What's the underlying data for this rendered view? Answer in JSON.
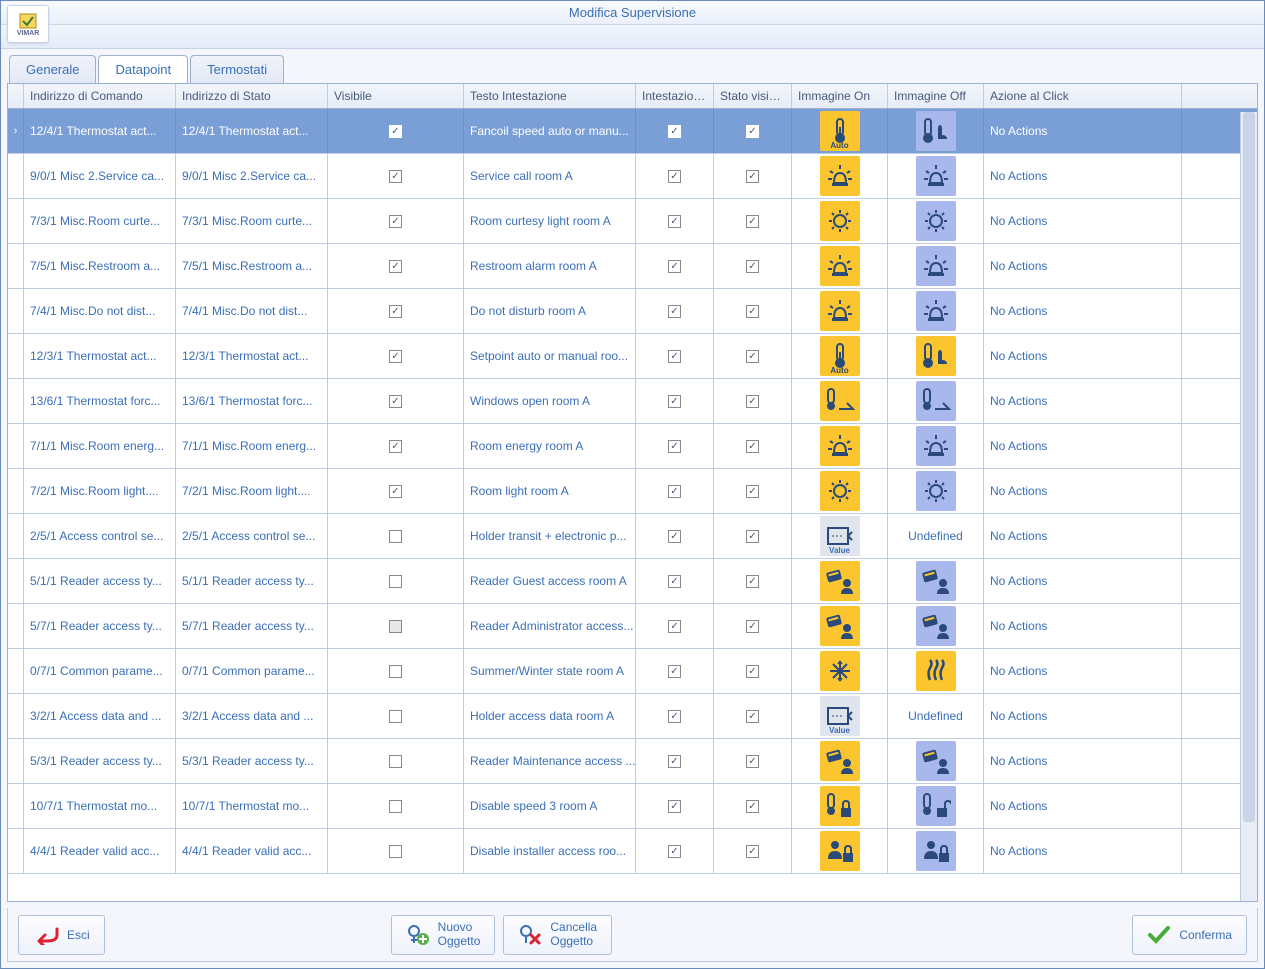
{
  "window": {
    "title": "Modifica Supervisione"
  },
  "logo": {
    "text": "VIMAR"
  },
  "tabs": [
    {
      "id": "generale",
      "label": "Generale",
      "active": false
    },
    {
      "id": "datapoint",
      "label": "Datapoint",
      "active": true
    },
    {
      "id": "termostati",
      "label": "Termostati",
      "active": false
    }
  ],
  "columns": [
    {
      "key": "cmd",
      "label": "Indirizzo di Comando",
      "widthClass": "col0"
    },
    {
      "key": "stato",
      "label": "Indirizzo di Stato",
      "widthClass": "col1"
    },
    {
      "key": "vis",
      "label": "Visibile",
      "widthClass": "col2"
    },
    {
      "key": "testo",
      "label": "Testo Intestazione",
      "widthClass": "col3"
    },
    {
      "key": "ivis",
      "label": "Intestazione Vi...",
      "widthClass": "col4"
    },
    {
      "key": "svis",
      "label": "Stato visibile",
      "widthClass": "col5"
    },
    {
      "key": "imOn",
      "label": "Immagine On",
      "widthClass": "col6"
    },
    {
      "key": "imOff",
      "label": "Immagine Off",
      "widthClass": "col7"
    },
    {
      "key": "act",
      "label": "Azione al Click",
      "widthClass": "col8"
    }
  ],
  "colors": {
    "iconOnBg": "#fbc52f",
    "iconOffBg": "#a8b8ec",
    "iconStroke": "#2a4a7a",
    "selectedRow": "#7a9ed6"
  },
  "rows": [
    {
      "selected": true,
      "cmd": "12/4/1 Thermostat act...",
      "stato": "12/4/1 Thermostat act...",
      "vis": true,
      "testo": "Fancoil speed auto or manu...",
      "ivis": true,
      "svis": true,
      "imOn": {
        "type": "thermo",
        "sub": "Auto"
      },
      "imOff": {
        "type": "thermo-hand",
        "bg": "off"
      },
      "act": "No Actions"
    },
    {
      "selected": false,
      "cmd": "9/0/1 Misc 2.Service ca...",
      "stato": "9/0/1 Misc 2.Service ca...",
      "vis": true,
      "testo": "Service call room A",
      "ivis": true,
      "svis": true,
      "imOn": {
        "type": "alarm"
      },
      "imOff": {
        "type": "alarm",
        "bg": "off"
      },
      "act": "No Actions"
    },
    {
      "selected": false,
      "cmd": "7/3/1 Misc.Room curte...",
      "stato": "7/3/1 Misc.Room curte...",
      "vis": true,
      "testo": "Room curtesy light room A",
      "ivis": true,
      "svis": true,
      "imOn": {
        "type": "bulb"
      },
      "imOff": {
        "type": "bulb",
        "bg": "off"
      },
      "act": "No Actions"
    },
    {
      "selected": false,
      "cmd": "7/5/1 Misc.Restroom a...",
      "stato": "7/5/1 Misc.Restroom a...",
      "vis": true,
      "testo": "Restroom alarm room A",
      "ivis": true,
      "svis": true,
      "imOn": {
        "type": "alarm"
      },
      "imOff": {
        "type": "alarm",
        "bg": "off"
      },
      "act": "No Actions"
    },
    {
      "selected": false,
      "cmd": "7/4/1 Misc.Do not dist...",
      "stato": "7/4/1 Misc.Do not dist...",
      "vis": true,
      "testo": "Do not disturb room A",
      "ivis": true,
      "svis": true,
      "imOn": {
        "type": "alarm"
      },
      "imOff": {
        "type": "alarm",
        "bg": "off"
      },
      "act": "No Actions"
    },
    {
      "selected": false,
      "cmd": "12/3/1 Thermostat act...",
      "stato": "12/3/1 Thermostat act...",
      "vis": true,
      "testo": "Setpoint auto or manual roo...",
      "ivis": true,
      "svis": true,
      "imOn": {
        "type": "thermo",
        "sub": "Auto"
      },
      "imOff": {
        "type": "thermo-hand",
        "bg": "onY"
      },
      "act": "No Actions"
    },
    {
      "selected": false,
      "cmd": "13/6/1 Thermostat forc...",
      "stato": "13/6/1 Thermostat forc...",
      "vis": true,
      "testo": "Windows open room A",
      "ivis": true,
      "svis": true,
      "imOn": {
        "type": "thermo-window"
      },
      "imOff": {
        "type": "thermo-window",
        "bg": "off"
      },
      "act": "No Actions"
    },
    {
      "selected": false,
      "cmd": "7/1/1 Misc.Room energ...",
      "stato": "7/1/1 Misc.Room energ...",
      "vis": true,
      "testo": "Room energy room A",
      "ivis": true,
      "svis": true,
      "imOn": {
        "type": "alarm"
      },
      "imOff": {
        "type": "alarm",
        "bg": "off"
      },
      "act": "No Actions"
    },
    {
      "selected": false,
      "cmd": "7/2/1 Misc.Room light....",
      "stato": "7/2/1 Misc.Room light....",
      "vis": true,
      "testo": "Room light room A",
      "ivis": true,
      "svis": true,
      "imOn": {
        "type": "bulb"
      },
      "imOff": {
        "type": "bulb",
        "bg": "off"
      },
      "act": "No Actions"
    },
    {
      "selected": false,
      "cmd": "2/5/1 Access control se...",
      "stato": "2/5/1 Access control se...",
      "vis": false,
      "testo": "Holder transit + electronic p...",
      "ivis": true,
      "svis": true,
      "imOn": {
        "type": "value",
        "sub": "Value",
        "bg": "grey"
      },
      "imOff": {
        "text": "Undefined"
      },
      "act": "No Actions"
    },
    {
      "selected": false,
      "cmd": "5/1/1 Reader access ty...",
      "stato": "5/1/1 Reader access ty...",
      "vis": false,
      "testo": "Reader Guest access room A",
      "ivis": true,
      "svis": true,
      "imOn": {
        "type": "card-person"
      },
      "imOff": {
        "type": "card-person",
        "bg": "off"
      },
      "act": "No Actions"
    },
    {
      "selected": false,
      "cmd": "5/7/1 Reader access ty...",
      "stato": "5/7/1 Reader access ty...",
      "vis": "grey",
      "testo": "Reader Administrator access...",
      "ivis": true,
      "svis": true,
      "imOn": {
        "type": "card-person"
      },
      "imOff": {
        "type": "card-person",
        "bg": "off"
      },
      "act": "No Actions"
    },
    {
      "selected": false,
      "cmd": "0/7/1 Common parame...",
      "stato": "0/7/1 Common parame...",
      "vis": false,
      "testo": "Summer/Winter state room A",
      "ivis": true,
      "svis": true,
      "imOn": {
        "type": "snow"
      },
      "imOff": {
        "type": "heat",
        "bg": "onY"
      },
      "act": "No Actions"
    },
    {
      "selected": false,
      "cmd": "3/2/1 Access data and ...",
      "stato": "3/2/1 Access data and ...",
      "vis": false,
      "testo": "Holder access data room A",
      "ivis": true,
      "svis": true,
      "imOn": {
        "type": "value",
        "sub": "Value",
        "bg": "grey"
      },
      "imOff": {
        "text": "Undefined"
      },
      "act": "No Actions"
    },
    {
      "selected": false,
      "cmd": "5/3/1 Reader access ty...",
      "stato": "5/3/1 Reader access ty...",
      "vis": false,
      "testo": "Reader Maintenance access ...",
      "ivis": true,
      "svis": true,
      "imOn": {
        "type": "card-person"
      },
      "imOff": {
        "type": "card-person",
        "bg": "off"
      },
      "act": "No Actions"
    },
    {
      "selected": false,
      "cmd": "10/7/1 Thermostat mo...",
      "stato": "10/7/1 Thermostat mo...",
      "vis": false,
      "testo": "Disable speed 3 room A",
      "ivis": true,
      "svis": true,
      "imOn": {
        "type": "thermo-lock"
      },
      "imOff": {
        "type": "thermo-unlock",
        "bg": "off"
      },
      "act": "No Actions"
    },
    {
      "selected": false,
      "cmd": "4/4/1 Reader valid acc...",
      "stato": "4/4/1 Reader valid acc...",
      "vis": false,
      "testo": "Disable installer access roo...",
      "ivis": true,
      "svis": true,
      "imOn": {
        "type": "person-lock"
      },
      "imOff": {
        "type": "person-lock",
        "bg": "off"
      },
      "act": "No Actions"
    }
  ],
  "footer": {
    "esci": "Esci",
    "nuovo": "Nuovo\nOggetto",
    "cancella": "Cancella\nOggetto",
    "conferma": "Conferma"
  }
}
